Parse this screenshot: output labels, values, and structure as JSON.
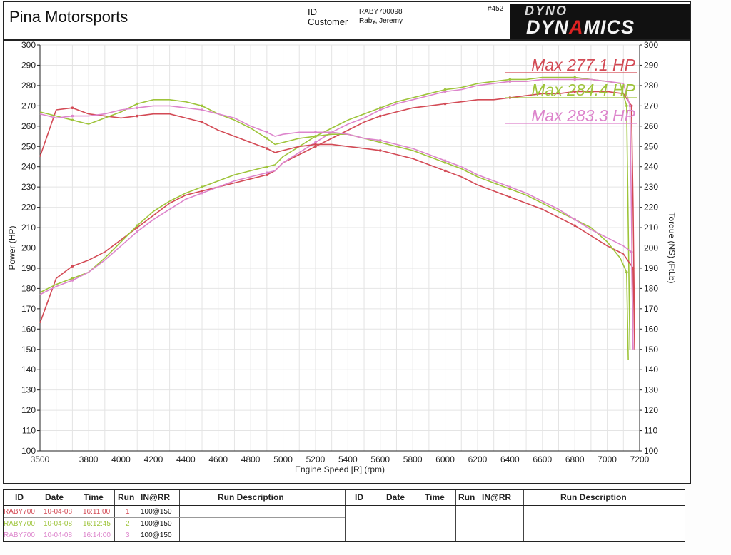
{
  "header": {
    "shop_name": "Pina Motorsports",
    "id_label": "ID",
    "customer_label": "Customer",
    "id_value": "RABY700098",
    "customer_value": "Raby, Jeremy",
    "sheet_number": "#452",
    "logo_top": "DYNO",
    "logo_main_1": "DYN",
    "logo_main_a": "A",
    "logo_main_2": "MICS"
  },
  "colors": {
    "run1": "#d34a55",
    "run2": "#9ec43a",
    "run3": "#dd85cc",
    "grid": "#e4e4e4",
    "axis": "#222222"
  },
  "chart_data": {
    "type": "line",
    "xlabel": "Engine Speed [R] (rpm)",
    "ylabel_left": "Power (HP)",
    "ylabel_right": "Torque (NS) (FtLb)",
    "xlim": [
      3500,
      7200
    ],
    "ylim_left": [
      100,
      300
    ],
    "ylim_right": [
      100,
      300
    ],
    "x_ticks": [
      3500,
      3800,
      4000,
      4200,
      4400,
      4600,
      4800,
      5000,
      5200,
      5400,
      5600,
      5800,
      6000,
      6200,
      6400,
      6600,
      6800,
      7000,
      7200
    ],
    "y_ticks_left": [
      100,
      110,
      120,
      130,
      140,
      150,
      160,
      170,
      180,
      190,
      200,
      210,
      220,
      230,
      240,
      250,
      260,
      270,
      280,
      290,
      300
    ],
    "y_ticks_right": [
      100,
      110,
      120,
      130,
      140,
      150,
      160,
      170,
      180,
      190,
      200,
      210,
      220,
      230,
      240,
      250,
      260,
      270,
      280,
      290,
      300
    ],
    "grid": true,
    "annotations": [
      {
        "text": "Max 277.1 HP",
        "series": "run1"
      },
      {
        "text": "Max 284.4 HP",
        "series": "run2"
      },
      {
        "text": "Max 283.3 HP",
        "series": "run3"
      }
    ],
    "series": [
      {
        "id": "run1-power",
        "color_key": "run1",
        "x": [
          3500,
          3600,
          3700,
          3800,
          3900,
          4000,
          4100,
          4200,
          4300,
          4400,
          4500,
          4600,
          4700,
          4800,
          4900,
          4950,
          5000,
          5100,
          5200,
          5300,
          5400,
          5500,
          5600,
          5700,
          5800,
          5900,
          6000,
          6100,
          6200,
          6300,
          6400,
          6500,
          6600,
          6700,
          6800,
          6900,
          7000,
          7100,
          7150,
          7160,
          7170
        ],
        "y": [
          163,
          185,
          191,
          194,
          198,
          204,
          210,
          216,
          222,
          226,
          228,
          230,
          232,
          234,
          236,
          238,
          242,
          246,
          250,
          254,
          258,
          262,
          265,
          267,
          269,
          270,
          271,
          272,
          273,
          273,
          274,
          275,
          276,
          276,
          277,
          277,
          277,
          276,
          270,
          220,
          150
        ]
      },
      {
        "id": "run2-power",
        "color_key": "run2",
        "x": [
          3500,
          3600,
          3700,
          3800,
          3900,
          4000,
          4100,
          4200,
          4300,
          4400,
          4500,
          4600,
          4700,
          4800,
          4900,
          4950,
          5000,
          5100,
          5200,
          5300,
          5400,
          5500,
          5600,
          5700,
          5800,
          5900,
          6000,
          6100,
          6200,
          6300,
          6400,
          6500,
          6600,
          6700,
          6800,
          6900,
          7000,
          7080,
          7120,
          7130,
          7140
        ],
        "y": [
          178,
          182,
          185,
          188,
          195,
          203,
          211,
          218,
          223,
          227,
          230,
          233,
          236,
          238,
          240,
          241,
          245,
          250,
          255,
          259,
          263,
          266,
          269,
          272,
          274,
          276,
          278,
          279,
          281,
          282,
          283,
          283,
          284,
          284,
          284,
          283,
          282,
          281,
          270,
          210,
          150
        ]
      },
      {
        "id": "run3-power",
        "color_key": "run3",
        "x": [
          3500,
          3600,
          3700,
          3800,
          3900,
          4000,
          4100,
          4200,
          4300,
          4400,
          4500,
          4600,
          4700,
          4800,
          4900,
          4950,
          5000,
          5100,
          5200,
          5300,
          5400,
          5500,
          5600,
          5700,
          5800,
          5900,
          6000,
          6100,
          6200,
          6300,
          6400,
          6500,
          6600,
          6700,
          6800,
          6900,
          7000,
          7100,
          7140,
          7150,
          7160
        ],
        "y": [
          177,
          181,
          184,
          188,
          194,
          201,
          208,
          214,
          219,
          224,
          227,
          230,
          233,
          235,
          237,
          238,
          242,
          247,
          252,
          257,
          261,
          264,
          268,
          271,
          273,
          275,
          277,
          278,
          280,
          281,
          282,
          282,
          283,
          283,
          283,
          283,
          282,
          281,
          270,
          215,
          150
        ]
      },
      {
        "id": "run1-torque",
        "color_key": "run1",
        "x": [
          3500,
          3600,
          3700,
          3800,
          3900,
          4000,
          4100,
          4200,
          4300,
          4400,
          4500,
          4600,
          4700,
          4800,
          4900,
          4950,
          5000,
          5100,
          5200,
          5300,
          5400,
          5500,
          5600,
          5700,
          5800,
          5900,
          6000,
          6100,
          6200,
          6300,
          6400,
          6500,
          6600,
          6700,
          6800,
          6900,
          7000,
          7100,
          7160,
          7170
        ],
        "y": [
          245,
          268,
          269,
          266,
          265,
          264,
          265,
          266,
          266,
          264,
          262,
          258,
          255,
          252,
          249,
          247,
          248,
          250,
          251,
          251,
          250,
          249,
          248,
          246,
          244,
          241,
          238,
          235,
          231,
          228,
          225,
          222,
          219,
          215,
          211,
          206,
          201,
          197,
          190,
          150
        ]
      },
      {
        "id": "run2-torque",
        "color_key": "run2",
        "x": [
          3500,
          3600,
          3700,
          3800,
          3900,
          4000,
          4100,
          4200,
          4300,
          4400,
          4500,
          4600,
          4700,
          4800,
          4900,
          4950,
          5000,
          5100,
          5200,
          5300,
          5400,
          5500,
          5600,
          5700,
          5800,
          5900,
          6000,
          6100,
          6200,
          6300,
          6400,
          6500,
          6600,
          6700,
          6800,
          6900,
          7000,
          7080,
          7120,
          7130
        ],
        "y": [
          267,
          265,
          263,
          261,
          264,
          267,
          271,
          273,
          273,
          272,
          270,
          266,
          263,
          259,
          254,
          251,
          252,
          254,
          255,
          256,
          256,
          254,
          252,
          250,
          248,
          245,
          242,
          239,
          235,
          232,
          229,
          226,
          222,
          218,
          214,
          210,
          203,
          195,
          188,
          145
        ]
      },
      {
        "id": "run3-torque",
        "color_key": "run3",
        "x": [
          3500,
          3600,
          3700,
          3800,
          3900,
          4000,
          4100,
          4200,
          4300,
          4400,
          4500,
          4600,
          4700,
          4800,
          4900,
          4950,
          5000,
          5100,
          5200,
          5300,
          5400,
          5500,
          5600,
          5700,
          5800,
          5900,
          6000,
          6100,
          6200,
          6300,
          6400,
          6500,
          6600,
          6700,
          6800,
          6900,
          7000,
          7100,
          7150,
          7160
        ],
        "y": [
          266,
          264,
          265,
          265,
          266,
          268,
          269,
          270,
          270,
          269,
          268,
          266,
          264,
          260,
          257,
          255,
          256,
          257,
          257,
          257,
          256,
          254,
          253,
          251,
          249,
          246,
          243,
          240,
          236,
          233,
          230,
          227,
          223,
          219,
          214,
          209,
          205,
          201,
          198,
          150
        ]
      }
    ]
  },
  "table": {
    "headers": [
      "ID",
      "Date",
      "Time",
      "Run",
      "IN@RR",
      "Run Description",
      "ID",
      "Date",
      "Time",
      "Run",
      "IN@RR",
      "Run Description"
    ],
    "rows": [
      {
        "id": "RABY700",
        "date": "10-04-08",
        "time": "16:11:00",
        "run": "1",
        "inrr": "100@150",
        "color_key": "run1"
      },
      {
        "id": "RABY700",
        "date": "10-04-08",
        "time": "16:12:45",
        "run": "2",
        "inrr": "100@150",
        "color_key": "run2"
      },
      {
        "id": "RABY700",
        "date": "10-04-08",
        "time": "16:14:00",
        "run": "3",
        "inrr": "100@150",
        "color_key": "run3"
      }
    ]
  }
}
